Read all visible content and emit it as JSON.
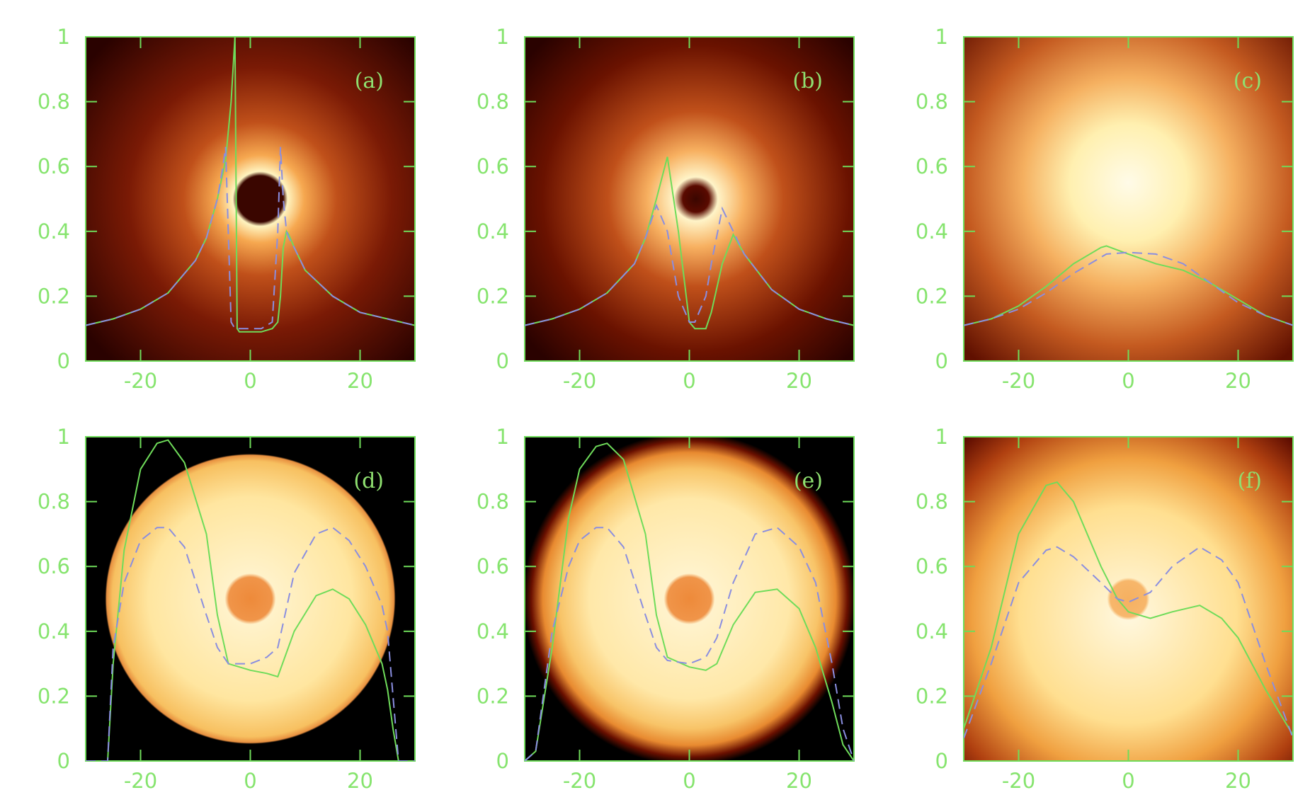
{
  "chart_data": [
    {
      "type": "line",
      "annotation": "(a)",
      "xlim": [
        -30,
        30
      ],
      "ylim": [
        0,
        1
      ],
      "xticks": [
        -20,
        0,
        20
      ],
      "yticks": [
        0,
        0.2,
        0.4,
        0.6,
        0.8,
        1
      ],
      "x": [
        -30,
        -25,
        -20,
        -15,
        -10,
        -8,
        -6,
        -5,
        -4.5,
        -3.5,
        -2.8,
        -2.4,
        -2,
        0,
        2,
        4,
        5,
        5.5,
        6,
        6.6,
        7,
        8,
        10,
        15,
        20,
        25,
        30
      ],
      "series": [
        {
          "color": "#6fdc5a",
          "dashed": false,
          "values": [
            0.11,
            0.13,
            0.16,
            0.21,
            0.31,
            0.38,
            0.5,
            0.58,
            0.62,
            0.8,
            1.0,
            0.1,
            0.09,
            0.09,
            0.09,
            0.1,
            0.12,
            0.2,
            0.35,
            0.4,
            0.39,
            0.35,
            0.28,
            0.2,
            0.15,
            0.13,
            0.11
          ]
        },
        {
          "color": "#8a8ee0",
          "dashed": true,
          "values": [
            0.11,
            0.13,
            0.16,
            0.21,
            0.31,
            0.38,
            0.5,
            0.6,
            0.66,
            0.12,
            0.1,
            0.1,
            0.1,
            0.1,
            0.1,
            0.12,
            0.4,
            0.66,
            0.5,
            0.4,
            0.38,
            0.35,
            0.28,
            0.2,
            0.15,
            0.13,
            0.11
          ]
        }
      ]
    },
    {
      "type": "line",
      "annotation": "(b)",
      "xlim": [
        -30,
        30
      ],
      "ylim": [
        0,
        1
      ],
      "xticks": [
        -20,
        0,
        20
      ],
      "yticks": [
        0,
        0.2,
        0.4,
        0.6,
        0.8,
        1
      ],
      "x": [
        -30,
        -25,
        -20,
        -15,
        -10,
        -8,
        -6,
        -4,
        -2,
        0,
        1,
        3,
        4,
        6,
        8,
        10,
        15,
        20,
        25,
        30
      ],
      "series": [
        {
          "color": "#6fdc5a",
          "dashed": false,
          "values": [
            0.11,
            0.13,
            0.16,
            0.21,
            0.3,
            0.38,
            0.5,
            0.63,
            0.4,
            0.12,
            0.1,
            0.1,
            0.15,
            0.3,
            0.39,
            0.33,
            0.22,
            0.16,
            0.13,
            0.11
          ]
        },
        {
          "color": "#8a8ee0",
          "dashed": true,
          "values": [
            0.11,
            0.13,
            0.16,
            0.21,
            0.3,
            0.38,
            0.48,
            0.4,
            0.2,
            0.12,
            0.12,
            0.2,
            0.3,
            0.47,
            0.4,
            0.33,
            0.22,
            0.16,
            0.13,
            0.11
          ]
        }
      ]
    },
    {
      "type": "line",
      "annotation": "(c)",
      "xlim": [
        -30,
        30
      ],
      "ylim": [
        0,
        1
      ],
      "xticks": [
        -20,
        0,
        20
      ],
      "yticks": [
        0,
        0.2,
        0.4,
        0.6,
        0.8,
        1
      ],
      "x": [
        -30,
        -25,
        -20,
        -15,
        -10,
        -5,
        -4,
        0,
        5,
        10,
        15,
        20,
        25,
        30
      ],
      "series": [
        {
          "color": "#6fdc5a",
          "dashed": false,
          "values": [
            0.11,
            0.13,
            0.17,
            0.23,
            0.3,
            0.35,
            0.355,
            0.33,
            0.3,
            0.28,
            0.24,
            0.19,
            0.14,
            0.11
          ]
        },
        {
          "color": "#8a8ee0",
          "dashed": true,
          "values": [
            0.11,
            0.13,
            0.16,
            0.21,
            0.27,
            0.32,
            0.33,
            0.335,
            0.33,
            0.3,
            0.24,
            0.18,
            0.14,
            0.11
          ]
        }
      ]
    },
    {
      "type": "line",
      "annotation": "(d)",
      "xlim": [
        -30,
        30
      ],
      "ylim": [
        0,
        1
      ],
      "xticks": [
        -20,
        0,
        20
      ],
      "yticks": [
        0,
        0.2,
        0.4,
        0.6,
        0.8,
        1
      ],
      "x": [
        -30,
        -26,
        -25,
        -23,
        -20,
        -17,
        -15,
        -12,
        -8,
        -6,
        -4,
        0,
        3,
        5,
        8,
        12,
        15,
        18,
        21,
        24,
        25,
        26,
        27,
        30
      ],
      "series": [
        {
          "color": "#6fdc5a",
          "dashed": false,
          "values": [
            0,
            0,
            0.3,
            0.65,
            0.9,
            0.98,
            0.99,
            0.92,
            0.7,
            0.45,
            0.3,
            0.28,
            0.27,
            0.26,
            0.4,
            0.51,
            0.53,
            0.5,
            0.42,
            0.3,
            0.22,
            0.1,
            0,
            0
          ]
        },
        {
          "color": "#8a8ee0",
          "dashed": true,
          "values": [
            0,
            0,
            0.35,
            0.55,
            0.68,
            0.72,
            0.72,
            0.66,
            0.45,
            0.35,
            0.3,
            0.3,
            0.32,
            0.35,
            0.58,
            0.7,
            0.72,
            0.68,
            0.6,
            0.48,
            0.4,
            0.2,
            0,
            0
          ]
        }
      ]
    },
    {
      "type": "line",
      "annotation": "(e)",
      "xlim": [
        -30,
        30
      ],
      "ylim": [
        0,
        1
      ],
      "xticks": [
        -20,
        0,
        20
      ],
      "yticks": [
        0,
        0.2,
        0.4,
        0.6,
        0.8,
        1
      ],
      "x": [
        -30,
        -28,
        -25,
        -22,
        -20,
        -17,
        -15,
        -12,
        -8,
        -6,
        -4,
        0,
        3,
        5,
        8,
        12,
        16,
        20,
        23,
        26,
        28,
        30
      ],
      "series": [
        {
          "color": "#6fdc5a",
          "dashed": false,
          "values": [
            0,
            0.03,
            0.35,
            0.75,
            0.9,
            0.97,
            0.98,
            0.93,
            0.7,
            0.45,
            0.32,
            0.29,
            0.28,
            0.3,
            0.42,
            0.52,
            0.53,
            0.47,
            0.35,
            0.18,
            0.05,
            0
          ]
        },
        {
          "color": "#8a8ee0",
          "dashed": true,
          "values": [
            0,
            0.03,
            0.4,
            0.6,
            0.68,
            0.72,
            0.72,
            0.66,
            0.45,
            0.35,
            0.31,
            0.3,
            0.32,
            0.38,
            0.55,
            0.7,
            0.72,
            0.66,
            0.55,
            0.3,
            0.1,
            0
          ]
        }
      ]
    },
    {
      "type": "line",
      "annotation": "(f)",
      "xlim": [
        -30,
        30
      ],
      "ylim": [
        0,
        1
      ],
      "xticks": [
        -20,
        0,
        20
      ],
      "yticks": [
        0,
        0.2,
        0.4,
        0.6,
        0.8,
        1
      ],
      "x": [
        -30,
        -25,
        -20,
        -15,
        -13,
        -10,
        -5,
        -2,
        0,
        4,
        8,
        13,
        17,
        20,
        25,
        30
      ],
      "series": [
        {
          "color": "#6fdc5a",
          "dashed": false,
          "values": [
            0.1,
            0.35,
            0.7,
            0.85,
            0.86,
            0.8,
            0.6,
            0.5,
            0.46,
            0.44,
            0.46,
            0.48,
            0.44,
            0.38,
            0.22,
            0.08
          ]
        },
        {
          "color": "#8a8ee0",
          "dashed": true,
          "values": [
            0.07,
            0.3,
            0.55,
            0.65,
            0.66,
            0.63,
            0.55,
            0.5,
            0.49,
            0.52,
            0.6,
            0.66,
            0.62,
            0.55,
            0.3,
            0.07
          ]
        }
      ]
    }
  ]
}
